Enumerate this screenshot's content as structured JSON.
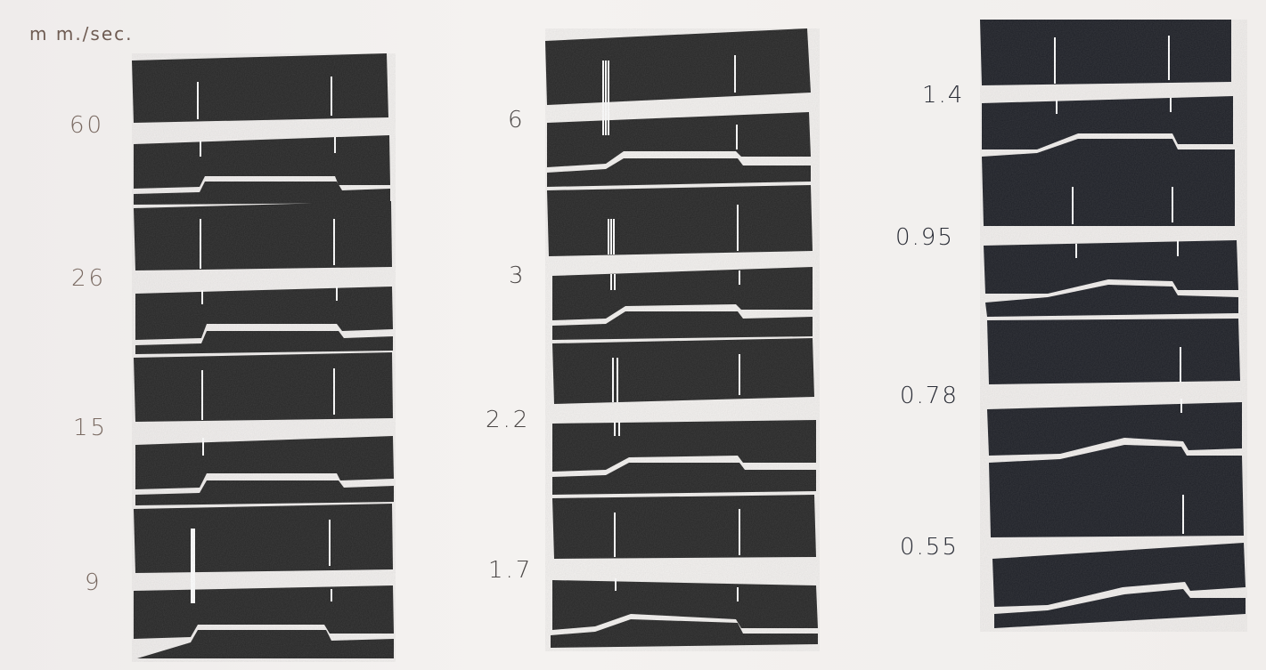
{
  "unit_label": "m m./sec.",
  "speed_labels": {
    "column_1": [
      "60",
      "26",
      "15",
      "9"
    ],
    "column_2": [
      "6",
      "3",
      "2.2",
      "1.7"
    ],
    "column_3": [
      "1.4",
      "0.95",
      "0.78",
      "0.55"
    ]
  },
  "colors": {
    "background": "#f2f0ee",
    "strip": "#262626",
    "strip_column_3": "#1d1f26",
    "trace": "#ffffff"
  }
}
